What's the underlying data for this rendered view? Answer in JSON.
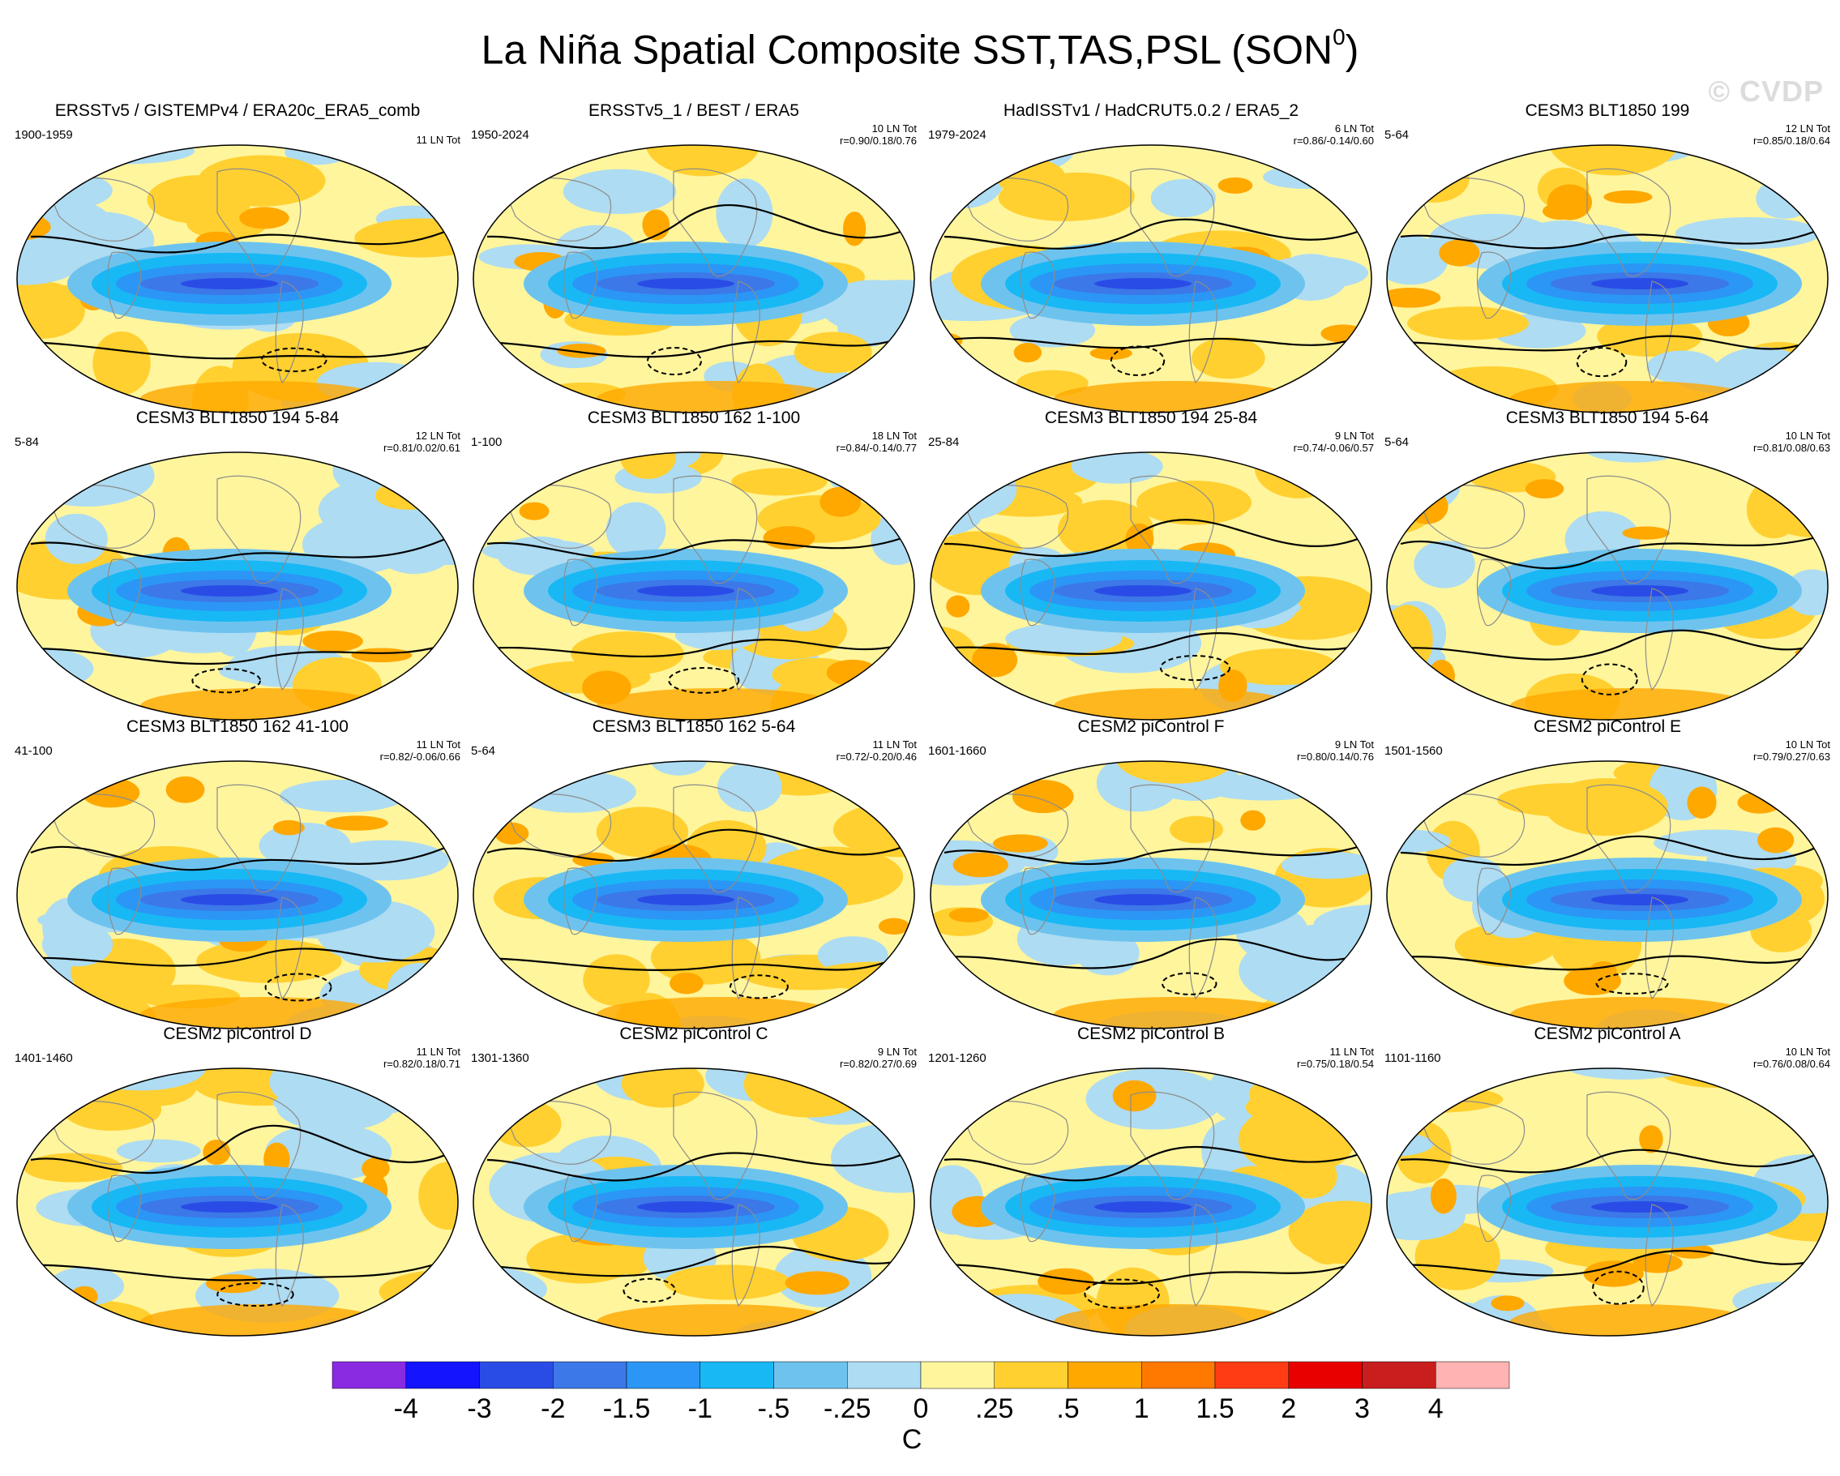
{
  "title": "La Niña Spatial Composite SST,TAS,PSL (SON",
  "title_superscript": "0",
  "title_close": ")",
  "watermark": "© CVDP",
  "chart_data": {
    "type": "heatmap",
    "title": "La Niña Spatial Composite SST,TAS,PSL (SON0)",
    "variables": [
      "SST",
      "TAS",
      "PSL"
    ],
    "season": "SON0",
    "units": "C",
    "colorbar": {
      "labels": [
        "-4",
        "-3",
        "-2",
        "-1.5",
        "-1",
        "-.5",
        "-.25",
        "0",
        ".25",
        ".5",
        "1",
        "1.5",
        "2",
        "3",
        "4"
      ],
      "colors": [
        "#8a2be2",
        "#1414ff",
        "#2a4ce6",
        "#3c78e8",
        "#2b96f5",
        "#18b8f5",
        "#6ec3ee",
        "#aedcf2",
        "#fff59d",
        "#ffd030",
        "#ffa800",
        "#ff7800",
        "#ff3c14",
        "#e80000",
        "#c81e1e",
        "#ffb3b3"
      ]
    },
    "panels": [
      {
        "title": "ERSSTv5 / GISTEMPv4 / ERA20c_ERA5_comb",
        "period": "1900-1959",
        "count": "11 LN Tot",
        "corr": ""
      },
      {
        "title": "ERSSTv5_1 / BEST / ERA5",
        "period": "1950-2024",
        "count": "10 LN Tot",
        "corr": "r=0.90/0.18/0.76"
      },
      {
        "title": "HadISSTv1 / HadCRUT5.0.2 / ERA5_2",
        "period": "1979-2024",
        "count": "6 LN Tot",
        "corr": "r=0.86/-0.14/0.60"
      },
      {
        "title": "CESM3 BLT1850 199",
        "period": "5-64",
        "count": "12 LN Tot",
        "corr": "r=0.85/0.18/0.64"
      },
      {
        "title": "CESM3 BLT1850 194 5-84",
        "period": "5-84",
        "count": "12 LN Tot",
        "corr": "r=0.81/0.02/0.61"
      },
      {
        "title": "CESM3 BLT1850 162 1-100",
        "period": "1-100",
        "count": "18 LN Tot",
        "corr": "r=0.84/-0.14/0.77"
      },
      {
        "title": "CESM3 BLT1850 194 25-84",
        "period": "25-84",
        "count": "9 LN Tot",
        "corr": "r=0.74/-0.06/0.57"
      },
      {
        "title": "CESM3 BLT1850 194 5-64",
        "period": "5-64",
        "count": "10 LN Tot",
        "corr": "r=0.81/0.08/0.63"
      },
      {
        "title": "CESM3 BLT1850 162 41-100",
        "period": "41-100",
        "count": "11 LN Tot",
        "corr": "r=0.82/-0.06/0.66"
      },
      {
        "title": "CESM3 BLT1850 162 5-64",
        "period": "5-64",
        "count": "11 LN Tot",
        "corr": "r=0.72/-0.20/0.46"
      },
      {
        "title": "CESM2 piControl F",
        "period": "1601-1660",
        "count": "9 LN Tot",
        "corr": "r=0.80/0.14/0.76"
      },
      {
        "title": "CESM2 piControl E",
        "period": "1501-1560",
        "count": "10 LN Tot",
        "corr": "r=0.79/0.27/0.63"
      },
      {
        "title": "CESM2 piControl D",
        "period": "1401-1460",
        "count": "11 LN Tot",
        "corr": "r=0.82/0.18/0.71"
      },
      {
        "title": "CESM2 piControl C",
        "period": "1301-1360",
        "count": "9 LN Tot",
        "corr": "r=0.82/0.27/0.69"
      },
      {
        "title": "CESM2 piControl B",
        "period": "1201-1260",
        "count": "11 LN Tot",
        "corr": "r=0.75/0.18/0.54"
      },
      {
        "title": "CESM2 piControl A",
        "period": "1101-1160",
        "count": "10 LN Tot",
        "corr": "r=0.76/0.08/0.64"
      }
    ]
  }
}
